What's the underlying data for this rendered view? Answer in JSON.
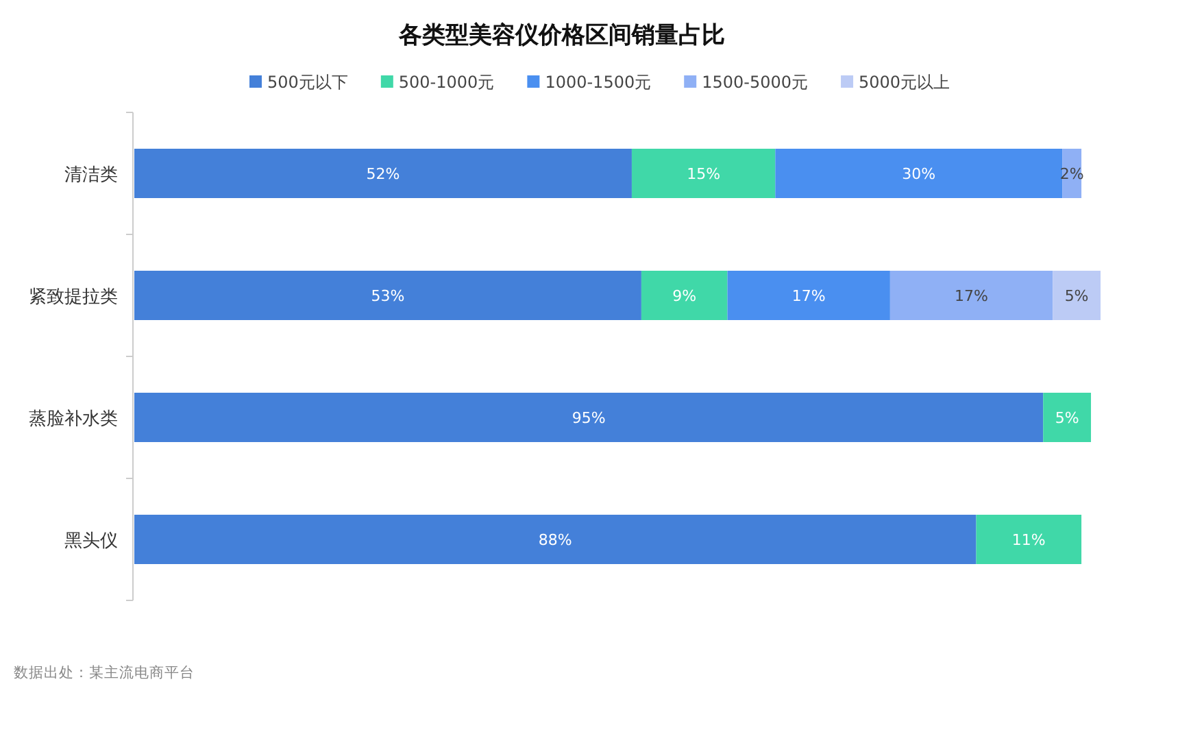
{
  "chart_data": {
    "type": "bar",
    "orientation": "horizontal",
    "stacked": true,
    "title": "各类型美容仪价格区间销量占比",
    "categories": [
      "清洁类",
      "紧致提拉类",
      "蒸脸补水类",
      "黑头仪"
    ],
    "xlim": [
      0,
      101
    ],
    "legend": "top",
    "annotations": [
      "数据出处：某主流电商平台"
    ],
    "series": [
      {
        "name": "500元以下",
        "color": "#4480d9",
        "values": [
          52,
          53,
          95,
          88
        ],
        "value_labels": [
          "52%",
          "53%",
          "95%",
          "88%"
        ]
      },
      {
        "name": "500-1000元",
        "color": "#40d8a8",
        "values": [
          15,
          9,
          5,
          11
        ],
        "value_labels": [
          "15%",
          "9%",
          "5%",
          "11%"
        ]
      },
      {
        "name": "1000-1500元",
        "color": "#4a8ff0",
        "values": [
          30,
          17,
          null,
          null
        ],
        "value_labels": [
          "30%",
          "17%",
          null,
          null
        ]
      },
      {
        "name": "1500-5000元",
        "color": "#8fb0f5",
        "values": [
          2,
          17,
          null,
          null
        ],
        "value_labels": [
          "2%",
          "17%",
          null,
          null
        ]
      },
      {
        "name": "5000元以上",
        "color": "#bccbf5",
        "values": [
          null,
          5,
          null,
          null
        ],
        "value_labels": [
          null,
          "5%",
          null,
          null
        ]
      }
    ]
  }
}
